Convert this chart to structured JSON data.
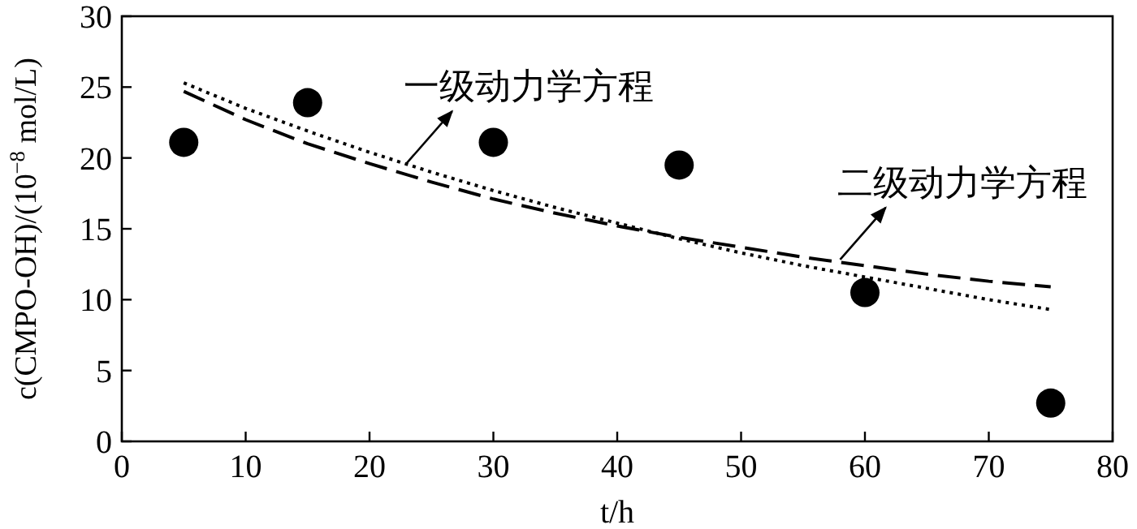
{
  "chart_data": {
    "type": "scatter",
    "xlabel": "t/h",
    "ylabel": "c(CMPO-OH)/(10$^{−8}$ mol/L)",
    "xlim": [
      0,
      80
    ],
    "xticks": [
      0,
      10,
      20,
      30,
      40,
      50,
      60,
      70,
      80
    ],
    "ylim": [
      0,
      30
    ],
    "yticks": [
      0,
      5,
      10,
      15,
      20,
      25,
      30
    ],
    "grid": false,
    "series": [
      {
        "color": "#000000",
        "marker": "circle",
        "x": [
          5,
          15,
          30,
          45,
          60,
          75
        ],
        "values": [
          21.1,
          23.9,
          21.1,
          19.5,
          10.5,
          2.7
        ]
      },
      {
        "type": "line",
        "color": "#000000",
        "line_style": "dotted",
        "marker": "none",
        "x": [
          5,
          10,
          15,
          20,
          25,
          30,
          35,
          40,
          45,
          50,
          55,
          60,
          65,
          70,
          75
        ],
        "values": [
          25.3,
          23.5,
          21.9,
          20.4,
          19.0,
          17.7,
          16.5,
          15.4,
          14.3,
          13.3,
          12.4,
          11.6,
          10.8,
          10.0,
          9.3
        ]
      },
      {
        "type": "line",
        "color": "#000000",
        "line_style": "dashed",
        "marker": "none",
        "x": [
          5,
          10,
          15,
          20,
          25,
          30,
          35,
          40,
          45,
          50,
          55,
          60,
          65,
          70,
          75
        ],
        "values": [
          24.7,
          22.7,
          21.0,
          19.6,
          18.3,
          17.1,
          16.1,
          15.2,
          14.4,
          13.7,
          13.0,
          12.4,
          11.8,
          11.3,
          10.9
        ]
      }
    ],
    "annotations": [
      {
        "text": "一级动力学方程",
        "x": 23,
        "y": 19.4
      },
      {
        "text": "二级动力学方程",
        "x": 58,
        "y": 12.6
      }
    ]
  }
}
